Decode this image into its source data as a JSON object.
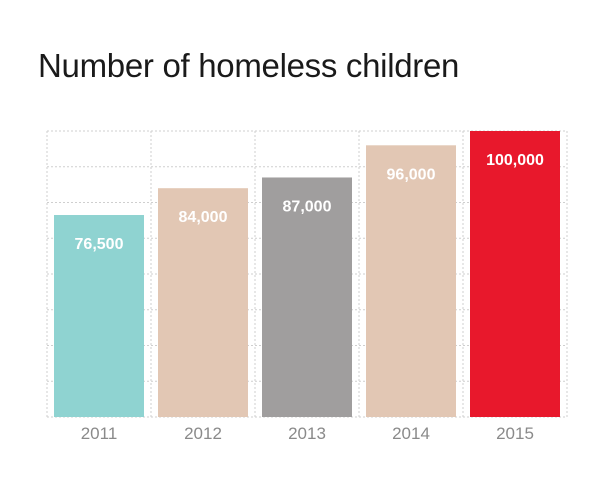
{
  "chart_data": {
    "type": "bar",
    "title": "Number of homeless children",
    "categories": [
      "2011",
      "2012",
      "2013",
      "2014",
      "2015"
    ],
    "values": [
      76500,
      84000,
      87000,
      96000,
      100000
    ],
    "data_labels": [
      "76,500",
      "84,000",
      "87,000",
      "96,000",
      "100,000"
    ],
    "colors": [
      "#8fd3d1",
      "#e2c7b4",
      "#a09e9e",
      "#e2c7b4",
      "#e8182c"
    ],
    "ylim": [
      20000,
      100000
    ],
    "grid": true,
    "xlabel": "",
    "ylabel": ""
  }
}
